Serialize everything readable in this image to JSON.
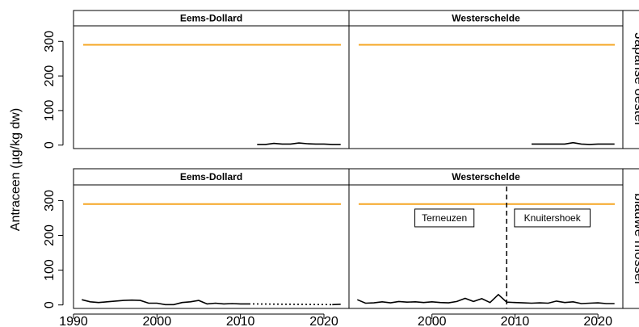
{
  "chart_data": {
    "type": "line",
    "ylabel": "Antraceen (µg/kg dw)",
    "xlim": [
      1990,
      2023
    ],
    "ylim": [
      -10,
      345
    ],
    "x_ticks": [
      1990,
      2000,
      2010,
      2020
    ],
    "y_ticks": [
      0,
      100,
      200,
      300
    ],
    "columns": [
      "Eems-Dollard",
      "Westerschelde"
    ],
    "rows": [
      "Japanse oester",
      "blauwe mossel"
    ],
    "threshold": {
      "value": 290,
      "color": "#f5a623"
    },
    "line_color": "#000000",
    "panels": [
      {
        "column": "Eems-Dollard",
        "row": "Japanse oester",
        "segments": [
          {
            "style": "solid",
            "x": [
              2012,
              2013,
              2014,
              2015,
              2016,
              2017,
              2018,
              2019,
              2020,
              2021,
              2022
            ],
            "y": [
              2,
              2,
              5,
              3,
              3,
              6,
              4,
              3,
              3,
              2,
              2
            ]
          }
        ]
      },
      {
        "column": "Westerschelde",
        "row": "Japanse oester",
        "segments": [
          {
            "style": "solid",
            "x": [
              2012,
              2013,
              2014,
              2015,
              2016,
              2017,
              2018,
              2019,
              2020,
              2021,
              2022
            ],
            "y": [
              3,
              3,
              3,
              3,
              3,
              7,
              3,
              2,
              3,
              3,
              3
            ]
          }
        ]
      },
      {
        "column": "Eems-Dollard",
        "row": "blauwe mossel",
        "segments": [
          {
            "style": "solid",
            "x": [
              1991,
              1992,
              1993,
              1994,
              1995,
              1996,
              1997,
              1998,
              1999,
              2000,
              2001,
              2002,
              2003,
              2004,
              2005,
              2006,
              2007,
              2008,
              2009,
              2010,
              2011
            ],
            "y": [
              15,
              9,
              7,
              9,
              11,
              13,
              14,
              13,
              5,
              5,
              1,
              1,
              7,
              9,
              13,
              3,
              5,
              3,
              4,
              3,
              3
            ]
          },
          {
            "style": "dotted",
            "x": [
              2011,
              2021
            ],
            "y": [
              3,
              1
            ]
          },
          {
            "style": "solid",
            "x": [
              2021,
              2022
            ],
            "y": [
              1,
              2
            ]
          }
        ]
      },
      {
        "column": "Westerschelde",
        "row": "blauwe mossel",
        "segments": [
          {
            "style": "solid",
            "x": [
              1991,
              1992,
              1993,
              1994,
              1995,
              1996,
              1997,
              1998,
              1999,
              2000,
              2001,
              2002,
              2003,
              2004,
              2005,
              2006,
              2007,
              2008,
              2009,
              2010,
              2011,
              2012,
              2013,
              2014,
              2015,
              2016,
              2017,
              2018,
              2019,
              2020,
              2021,
              2022
            ],
            "y": [
              15,
              5,
              6,
              9,
              6,
              10,
              8,
              9,
              7,
              9,
              7,
              6,
              10,
              19,
              10,
              18,
              7,
              30,
              8,
              7,
              6,
              5,
              6,
              5,
              11,
              7,
              9,
              4,
              5,
              6,
              4,
              4
            ]
          }
        ],
        "vline": {
          "x": 2009,
          "style": "dashed"
        },
        "annotations": [
          {
            "text": "Terneuzen",
            "x": 2001.5,
            "y": 250
          },
          {
            "text": "Knuitershoek",
            "x": 2014.5,
            "y": 250
          }
        ]
      }
    ]
  }
}
